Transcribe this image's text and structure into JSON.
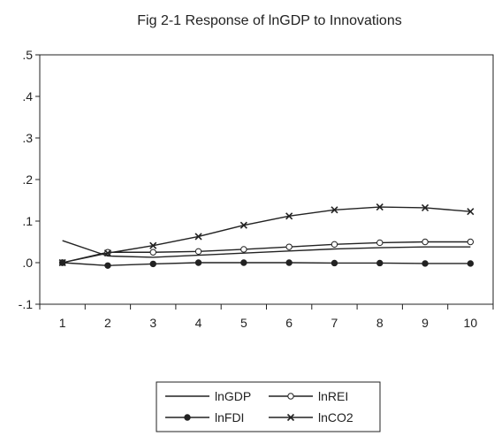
{
  "chart_data": {
    "type": "line",
    "title": "Fig 2-1 Response of lnGDP to Innovations",
    "xlabel": "",
    "ylabel": "",
    "x": [
      1,
      2,
      3,
      4,
      5,
      6,
      7,
      8,
      9,
      10
    ],
    "xlim": [
      0.5,
      10.5
    ],
    "ylim": [
      -0.1,
      0.5
    ],
    "y_ticks": [
      ".5",
      ".4",
      ".3",
      ".2",
      ".1",
      ".0",
      "-.1"
    ],
    "grid": false,
    "legend_position": "bottom",
    "series": [
      {
        "name": "lnGDP",
        "marker": "none",
        "values": [
          0.053,
          0.016,
          0.013,
          0.018,
          0.023,
          0.028,
          0.033,
          0.036,
          0.038,
          0.038
        ]
      },
      {
        "name": "lnREI",
        "marker": "open-circle",
        "values": [
          0.0,
          0.025,
          0.025,
          0.027,
          0.032,
          0.038,
          0.044,
          0.048,
          0.05,
          0.05
        ]
      },
      {
        "name": "lnFDI",
        "marker": "filled-circle",
        "values": [
          0.0,
          -0.007,
          -0.003,
          0.0,
          0.0,
          0.0,
          -0.001,
          -0.001,
          -0.002,
          -0.002
        ]
      },
      {
        "name": "lnCO2",
        "marker": "x",
        "values": [
          0.0,
          0.023,
          0.041,
          0.063,
          0.09,
          0.112,
          0.127,
          0.134,
          0.132,
          0.123
        ]
      }
    ]
  }
}
